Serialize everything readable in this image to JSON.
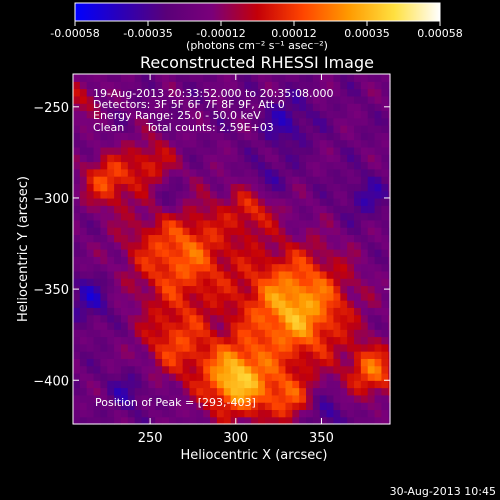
{
  "colorbar": {
    "tick_labels": [
      "-0.00058",
      "-0.00035",
      "-0.00012",
      "0.00012",
      "0.00035",
      "0.00058"
    ],
    "unit_label": "(photons cm⁻² s⁻¹ asec⁻²)",
    "stops": [
      "#0000ff",
      "#2b00b8",
      "#5a0079",
      "#7a007a",
      "#c40008",
      "#ff4500",
      "#ff9a00",
      "#ffe040",
      "#ffffff"
    ]
  },
  "chart_data": {
    "type": "heatmap",
    "title": "Reconstructed RHESSI Image",
    "xlabel": "Heliocentric X (arcsec)",
    "ylabel": "Heliocentric Y (arcsec)",
    "xlim": [
      205,
      390
    ],
    "ylim": [
      -424,
      -232
    ],
    "x_ticks": [
      250,
      300,
      350
    ],
    "y_ticks": [
      -250,
      -300,
      -350,
      -400
    ],
    "zlim": [
      -0.00058,
      0.00058
    ],
    "annotations": [
      "19-Aug-2013 20:33:52.000 to 20:35:08.000",
      "Detectors: 3F 5F 6F 7F 8F 9F, Att 0",
      "Energy Range: 25.0 - 50.0 keV",
      "Clean",
      "Total counts: 2.59E+03"
    ],
    "peak_label": "Position of Peak = [293,-403]",
    "peak": [
      293,
      -403
    ],
    "sources": [
      {
        "x": 335,
        "y": -360,
        "amplitude": 0.00055,
        "sigma": 22
      },
      {
        "x": 300,
        "y": -400,
        "amplitude": 0.00058,
        "sigma": 14
      },
      {
        "x": 268,
        "y": -330,
        "amplitude": 0.0004,
        "sigma": 22
      },
      {
        "x": 225,
        "y": -290,
        "amplitude": 0.00035,
        "sigma": 10
      },
      {
        "x": 250,
        "y": -280,
        "amplitude": 0.00025,
        "sigma": 10
      },
      {
        "x": 210,
        "y": -245,
        "amplitude": 0.0002,
        "sigma": 8
      },
      {
        "x": 380,
        "y": -395,
        "amplitude": 0.0004,
        "sigma": 10
      },
      {
        "x": 265,
        "y": -380,
        "amplitude": 0.0003,
        "sigma": 14
      },
      {
        "x": 330,
        "y": -410,
        "amplitude": 0.0003,
        "sigma": 10
      },
      {
        "x": 310,
        "y": -305,
        "amplitude": 0.00025,
        "sigma": 10
      }
    ],
    "negative_spots": [
      {
        "x": 215,
        "y": -355,
        "amplitude": -0.0002,
        "sigma": 9
      },
      {
        "x": 262,
        "y": -300,
        "amplitude": -0.00018,
        "sigma": 9
      },
      {
        "x": 330,
        "y": -258,
        "amplitude": -0.00018,
        "sigma": 10
      },
      {
        "x": 318,
        "y": -290,
        "amplitude": -0.00016,
        "sigma": 8
      },
      {
        "x": 352,
        "y": -418,
        "amplitude": -0.00018,
        "sigma": 7
      },
      {
        "x": 238,
        "y": -405,
        "amplitude": -0.00015,
        "sigma": 8
      },
      {
        "x": 376,
        "y": -300,
        "amplitude": -0.00015,
        "sigma": 9
      }
    ]
  },
  "footer": {
    "timestamp": "30-Aug-2013 10:45"
  }
}
